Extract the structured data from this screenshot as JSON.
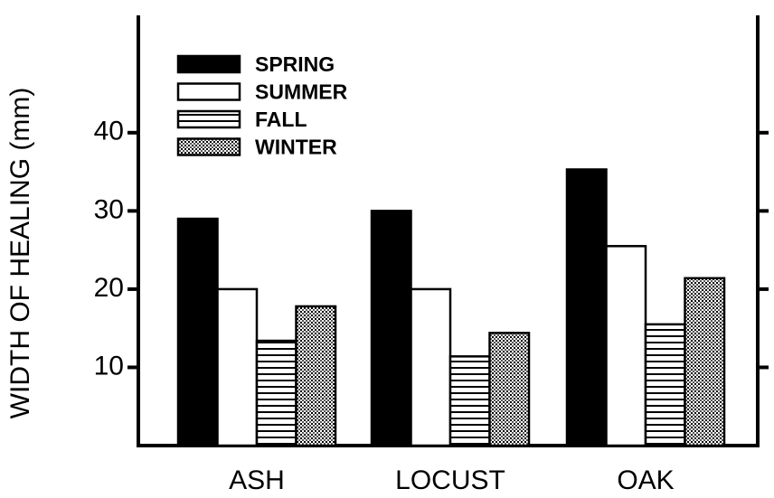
{
  "chart_data": {
    "type": "bar",
    "y_label": "WIDTH OF HEALING (mm)",
    "categories": [
      "ASH",
      "LOCUST",
      "OAK"
    ],
    "series": [
      {
        "name": "SPRING",
        "color": "#000000",
        "pattern": "solid",
        "values": [
          29,
          30,
          35.3
        ]
      },
      {
        "name": "SUMMER",
        "color": "#ffffff",
        "pattern": "solid",
        "values": [
          20,
          20,
          25.5
        ]
      },
      {
        "name": "FALL",
        "color": "#ffffff",
        "pattern": "hlines",
        "values": [
          13.4,
          11.4,
          15.5
        ]
      },
      {
        "name": "WINTER",
        "color": "#ffffff",
        "pattern": "dots",
        "values": [
          17.8,
          14.4,
          21.4
        ]
      }
    ],
    "ylim": [
      0,
      55
    ],
    "yticks": [
      10,
      20,
      30,
      40
    ],
    "legend": "upper left"
  }
}
